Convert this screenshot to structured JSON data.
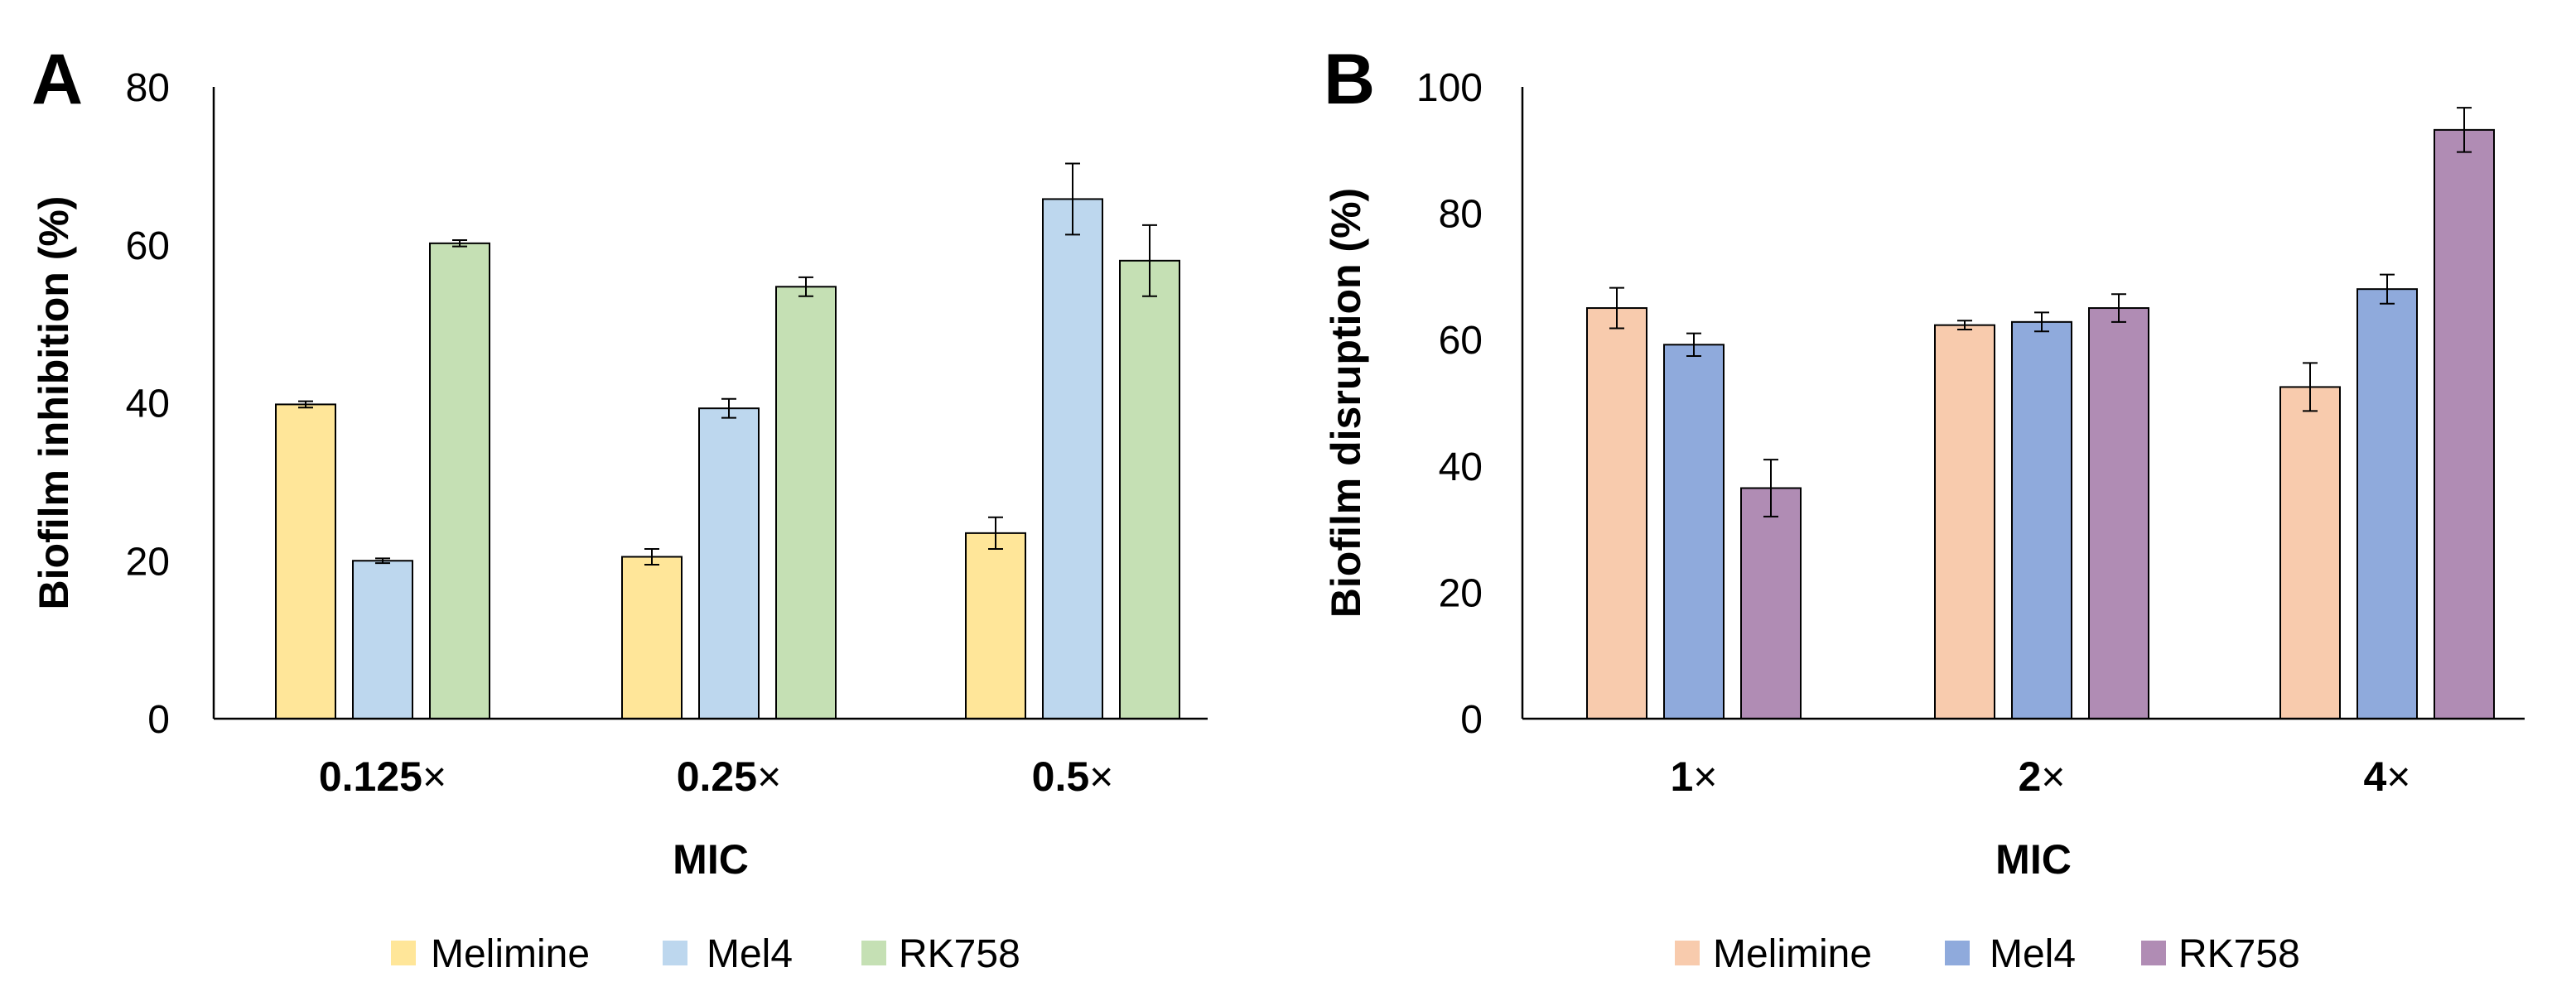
{
  "chart_data": [
    {
      "panel": "A",
      "type": "bar",
      "title": "",
      "xlabel": "MIC",
      "ylabel": "Biofilm inhibition (%)",
      "ylim": [
        0,
        80
      ],
      "yticks": [
        0,
        20,
        40,
        60,
        80
      ],
      "grid": false,
      "legend_position": "bottom",
      "categories": [
        {
          "value": "0.125",
          "suffix": "×"
        },
        {
          "value": "0.25",
          "suffix": "×"
        },
        {
          "value": "0.5",
          "suffix": "×"
        }
      ],
      "series": [
        {
          "name": "Melimine",
          "color": "#FFE699",
          "values": [
            39.8,
            20.5,
            23.5
          ],
          "errors": [
            0.4,
            1.0,
            2.0
          ]
        },
        {
          "name": "Mel4",
          "color": "#BDD7EE",
          "values": [
            20.0,
            39.3,
            65.8
          ],
          "errors": [
            0.3,
            1.2,
            4.5
          ]
        },
        {
          "name": "RK758",
          "color": "#C5E0B4",
          "values": [
            60.2,
            54.7,
            58.0
          ],
          "errors": [
            0.4,
            1.2,
            4.5
          ]
        }
      ]
    },
    {
      "panel": "B",
      "type": "bar",
      "title": "",
      "xlabel": "MIC",
      "ylabel": "Biofilm disruption (%)",
      "ylim": [
        0,
        100
      ],
      "yticks": [
        0,
        20,
        40,
        60,
        80,
        100
      ],
      "grid": false,
      "legend_position": "bottom",
      "categories": [
        {
          "value": "1",
          "suffix": "×"
        },
        {
          "value": "2",
          "suffix": "×"
        },
        {
          "value": "4",
          "suffix": "×"
        }
      ],
      "series": [
        {
          "name": "Melimine",
          "color": "#F8CBAD",
          "values": [
            65.0,
            62.3,
            52.5
          ],
          "errors": [
            3.2,
            0.7,
            3.8
          ]
        },
        {
          "name": "Mel4",
          "color": "#8FAADC",
          "values": [
            59.2,
            62.8,
            68.0
          ],
          "errors": [
            1.8,
            1.5,
            2.3
          ]
        },
        {
          "name": "RK758",
          "color": "#B08CB4",
          "values": [
            36.5,
            65.0,
            93.2
          ],
          "errors": [
            4.5,
            2.2,
            3.5
          ]
        }
      ]
    }
  ]
}
